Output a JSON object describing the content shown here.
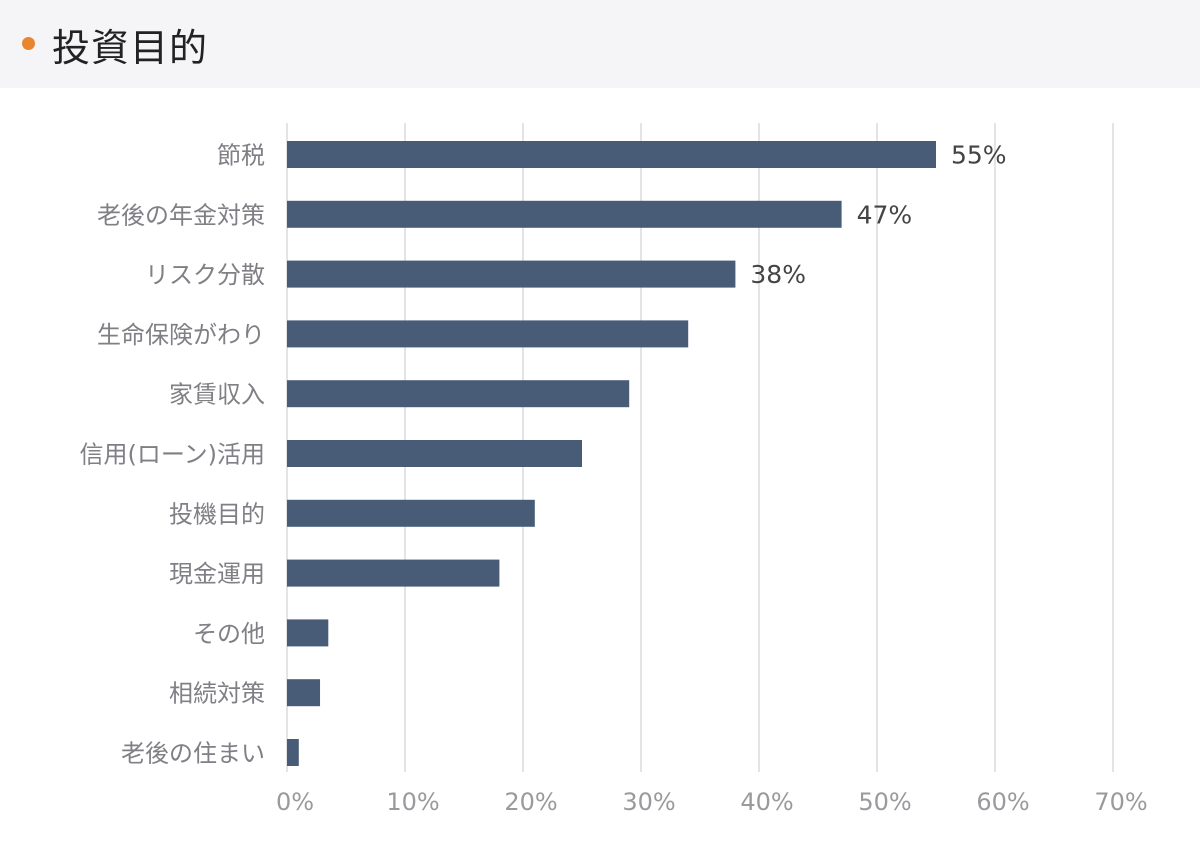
{
  "header": {
    "title": "投資目的"
  },
  "colors": {
    "accent": "#e8852e",
    "bar": "#485c77",
    "grid": "#e4e4e8",
    "header_bg": "#f5f4f7"
  },
  "chart_data": {
    "type": "bar",
    "orientation": "horizontal",
    "title": "投資目的",
    "xlabel": "",
    "ylabel": "",
    "xlim": [
      0,
      70
    ],
    "x_ticks": [
      0,
      10,
      20,
      30,
      40,
      50,
      60,
      70
    ],
    "tick_format": "%",
    "grid": "vertical",
    "legend": "none",
    "categories": [
      "節税",
      "老後の年金対策",
      "リスク分散",
      "生命保険がわり",
      "家賃収入",
      "信用(ローン)活用",
      "投機目的",
      "現金運用",
      "その他",
      "相続対策",
      "老後の住まい"
    ],
    "values": [
      55,
      47,
      38,
      34,
      29,
      25,
      21,
      18,
      3.5,
      2.8,
      1
    ],
    "data_labels": [
      "55%",
      "47%",
      "38%",
      "",
      "",
      "",
      "",
      "",
      "",
      "",
      ""
    ]
  }
}
